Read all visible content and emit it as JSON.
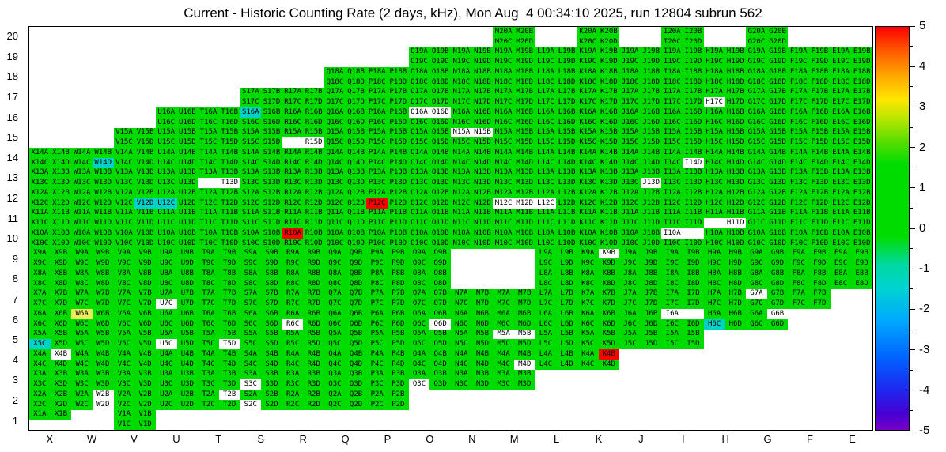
{
  "title": "Current - Historic Counting Rate (2 days, kHz), Mon Aug  4 00:34:10 2025, run 12804 subrun 562",
  "chart_data": {
    "type": "heatmap",
    "title": "Current - Historic Counting Rate (2 days, kHz), Mon Aug  4 00:34:10 2025, run 12804 subrun 562",
    "xlabel": "",
    "ylabel": "",
    "x_categories": [
      "X",
      "W",
      "V",
      "U",
      "T",
      "S",
      "R",
      "Q",
      "P",
      "O",
      "N",
      "M",
      "L",
      "K",
      "J",
      "I",
      "H",
      "G",
      "F",
      "E"
    ],
    "y_categories": [
      20,
      19,
      18,
      17,
      16,
      15,
      14,
      13,
      12,
      11,
      10,
      9,
      8,
      7,
      6,
      5,
      4,
      3,
      2,
      1
    ],
    "cell_suffixes": [
      "A",
      "B",
      "C",
      "D"
    ],
    "value_scale": {
      "min": -5,
      "max": 5,
      "ticks": [
        5,
        4,
        3,
        2,
        1,
        0,
        -1,
        -2,
        -3,
        -4,
        -5
      ]
    },
    "rows_present": {
      "20": [
        "M",
        "K",
        "I",
        "G"
      ],
      "19": [
        "O",
        "N",
        "M",
        "L",
        "K",
        "J",
        "I",
        "H",
        "G",
        "F",
        "E"
      ],
      "18": [
        "Q",
        "P",
        "O",
        "N",
        "M",
        "L",
        "K",
        "J",
        "I",
        "H",
        "G",
        "F",
        "E"
      ],
      "17": [
        "S",
        "R",
        "Q",
        "P",
        "O",
        "N",
        "M",
        "L",
        "K",
        "J",
        "I",
        "H",
        "G",
        "F",
        "E"
      ],
      "16": [
        "U",
        "T",
        "S",
        "R",
        "Q",
        "P",
        "O",
        "N",
        "M",
        "L",
        "K",
        "J",
        "I",
        "H",
        "G",
        "F",
        "E"
      ],
      "15": [
        "V",
        "U",
        "T",
        "S",
        "R",
        "Q",
        "P",
        "O",
        "N",
        "M",
        "L",
        "K",
        "J",
        "I",
        "H",
        "G",
        "F",
        "E"
      ],
      "14": [
        "X",
        "W",
        "V",
        "U",
        "T",
        "S",
        "R",
        "Q",
        "P",
        "O",
        "N",
        "M",
        "L",
        "K",
        "J",
        "I",
        "H",
        "G",
        "F",
        "E"
      ],
      "13": [
        "X",
        "W",
        "V",
        "U",
        "T",
        "S",
        "R",
        "Q",
        "P",
        "O",
        "N",
        "M",
        "L",
        "K",
        "J",
        "I",
        "H",
        "G",
        "F",
        "E"
      ],
      "12": [
        "X",
        "W",
        "V",
        "U",
        "T",
        "S",
        "R",
        "Q",
        "P",
        "O",
        "N",
        "M",
        "L",
        "K",
        "J",
        "I",
        "H",
        "G",
        "F",
        "E"
      ],
      "11": [
        "X",
        "W",
        "V",
        "U",
        "T",
        "S",
        "R",
        "Q",
        "P",
        "O",
        "N",
        "M",
        "L",
        "K",
        "J",
        "I",
        "H",
        "G",
        "F",
        "E"
      ],
      "10": [
        "X",
        "W",
        "V",
        "U",
        "T",
        "S",
        "R",
        "Q",
        "P",
        "O",
        "N",
        "M",
        "L",
        "K",
        "J",
        "I",
        "H",
        "G",
        "F",
        "E"
      ],
      "9": [
        "X",
        "W",
        "V",
        "U",
        "T",
        "S",
        "R",
        "Q",
        "P",
        "O",
        "L",
        "K",
        "J",
        "I",
        "H",
        "G",
        "F",
        "E"
      ],
      "8": [
        "X",
        "W",
        "V",
        "U",
        "T",
        "S",
        "R",
        "Q",
        "P",
        "O",
        "L",
        "K",
        "J",
        "I",
        "H",
        "G",
        "F",
        "E"
      ],
      "7": [
        "X",
        "W",
        "V",
        "U",
        "T",
        "S",
        "R",
        "Q",
        "P",
        "O",
        "N",
        "M",
        "L",
        "K",
        "J",
        "I",
        "H",
        "G",
        "F"
      ],
      "6": [
        "X",
        "W",
        "V",
        "U",
        "T",
        "S",
        "R",
        "Q",
        "P",
        "O",
        "N",
        "M",
        "L",
        "K",
        "J",
        "I",
        "H",
        "G"
      ],
      "5": [
        "X",
        "W",
        "V",
        "U",
        "T",
        "S",
        "R",
        "Q",
        "P",
        "O",
        "N",
        "M",
        "L",
        "K",
        "J",
        "I"
      ],
      "4": [
        "X",
        "W",
        "V",
        "U",
        "T",
        "S",
        "R",
        "Q",
        "P",
        "O",
        "N",
        "M",
        "L",
        "K"
      ],
      "3": [
        "X",
        "W",
        "V",
        "U",
        "T",
        "S",
        "R",
        "Q",
        "P",
        "O",
        "N",
        "M"
      ],
      "2": [
        "X",
        "W",
        "V",
        "U",
        "T",
        "S",
        "R",
        "Q",
        "P"
      ],
      "1": [
        "X",
        "V"
      ]
    },
    "special_cells": {
      "H17C": "w",
      "O16A": "w",
      "O16B": "w",
      "S16A": "c",
      "R15C": "x",
      "R15D": "w",
      "N15A": "w",
      "N15B": "w",
      "W14D": "c",
      "I14D": "w",
      "T13C": "x",
      "T13D": "w",
      "J13D": "w",
      "V12D": "c",
      "U12C": "c",
      "P12C": "r",
      "M12C": "w",
      "M12D": "w",
      "L12C": "w",
      "H11C": "x",
      "H11D": "w",
      "R10A": "r",
      "I10A": "w",
      "I10B": "x",
      "K9B": "w",
      "U7C": "w",
      "G7A": "w",
      "W6A": "y",
      "R6C": "w",
      "O6D": "w",
      "I6A": "w",
      "I6B": "x",
      "H6C": "c",
      "G6B": "w",
      "X5C": "c",
      "U5C": "w",
      "T5D": "w",
      "M5A": "w",
      "M5B": "w",
      "X4B": "w",
      "M4D": "w",
      "K4B": "r",
      "S3C": "w",
      "O3C": "w",
      "W2B": "w",
      "W2D": "w",
      "T2B": "w",
      "S2C": "w",
      "X1C": "x",
      "X1D": "x"
    },
    "special_colors": {
      "g": "#00DC00",
      "w": "#FFFFFF",
      "y": "#EAEA5A",
      "r": "#FF0000",
      "c": "#00D2C8",
      "x": "#FFFFFF"
    },
    "color_value_hints": {
      "g": 0.5,
      "y": 2,
      "r": 5,
      "c": -1,
      "w": null,
      "x": null
    },
    "colorbar_gradient": [
      {
        "pos": 0,
        "color": "#FF0000"
      },
      {
        "pos": 6,
        "color": "#FF5A00"
      },
      {
        "pos": 12,
        "color": "#FFA500"
      },
      {
        "pos": 18,
        "color": "#FFE600"
      },
      {
        "pos": 23,
        "color": "#B4E600"
      },
      {
        "pos": 29,
        "color": "#50DC00"
      },
      {
        "pos": 34,
        "color": "#00DC00"
      },
      {
        "pos": 52,
        "color": "#00DC00"
      },
      {
        "pos": 59,
        "color": "#00D9A0"
      },
      {
        "pos": 65,
        "color": "#00D2D2"
      },
      {
        "pos": 73,
        "color": "#00A8FF"
      },
      {
        "pos": 82,
        "color": "#0064FF"
      },
      {
        "pos": 90,
        "color": "#1E28F0"
      },
      {
        "pos": 96,
        "color": "#4600D2"
      },
      {
        "pos": 100,
        "color": "#7800C8"
      }
    ],
    "legend_position": "right",
    "grid": "off"
  }
}
